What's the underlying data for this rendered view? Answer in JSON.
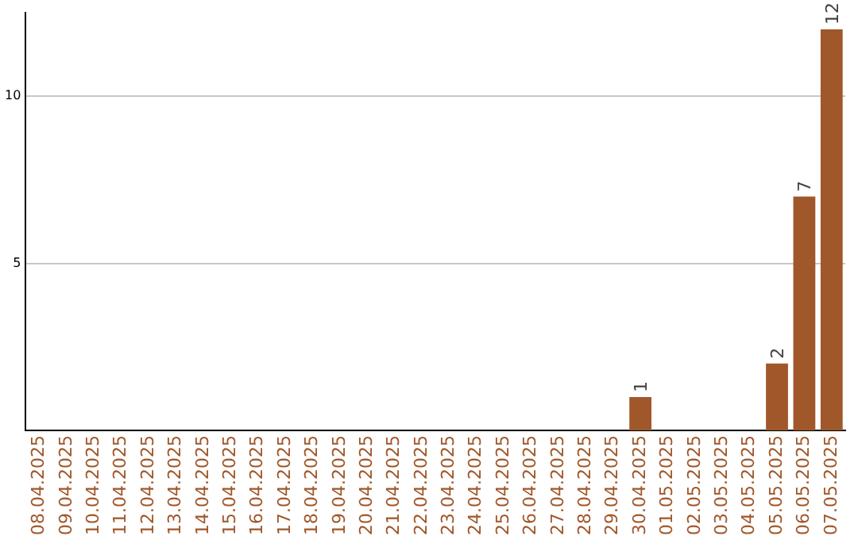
{
  "chart_data": {
    "type": "bar",
    "categories": [
      "08.04.2025",
      "09.04.2025",
      "10.04.2025",
      "11.04.2025",
      "12.04.2025",
      "13.04.2025",
      "14.04.2025",
      "15.04.2025",
      "16.04.2025",
      "17.04.2025",
      "18.04.2025",
      "19.04.2025",
      "20.04.2025",
      "21.04.2025",
      "22.04.2025",
      "23.04.2025",
      "24.04.2025",
      "25.04.2025",
      "26.04.2025",
      "27.04.2025",
      "28.04.2025",
      "29.04.2025",
      "30.04.2025",
      "01.05.2025",
      "02.05.2025",
      "03.05.2025",
      "04.05.2025",
      "05.05.2025",
      "06.05.2025",
      "07.05.2025"
    ],
    "values": [
      0,
      0,
      0,
      0,
      0,
      0,
      0,
      0,
      0,
      0,
      0,
      0,
      0,
      0,
      0,
      0,
      0,
      0,
      0,
      0,
      0,
      0,
      1,
      0,
      0,
      0,
      0,
      2,
      7,
      12
    ],
    "value_labels": [
      null,
      null,
      null,
      null,
      null,
      null,
      null,
      null,
      null,
      null,
      null,
      null,
      null,
      null,
      null,
      null,
      null,
      null,
      null,
      null,
      null,
      null,
      "1",
      null,
      null,
      null,
      null,
      "2",
      "7",
      "12"
    ],
    "color": "#a0572a",
    "ylim": [
      0,
      12.5
    ],
    "yticks": [
      5,
      10
    ],
    "grid": "y",
    "legend": false
  }
}
